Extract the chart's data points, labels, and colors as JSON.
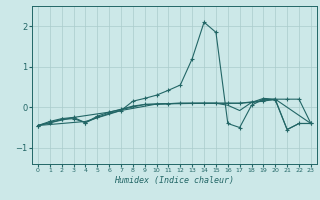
{
  "title": "",
  "xlabel": "Humidex (Indice chaleur)",
  "xlim": [
    -0.5,
    23.5
  ],
  "ylim": [
    -1.4,
    2.5
  ],
  "yticks": [
    -1,
    0,
    1,
    2
  ],
  "xticks": [
    0,
    1,
    2,
    3,
    4,
    5,
    6,
    7,
    8,
    9,
    10,
    11,
    12,
    13,
    14,
    15,
    16,
    17,
    18,
    19,
    20,
    21,
    22,
    23
  ],
  "background_color": "#cce8e8",
  "grid_color": "#aacccc",
  "line_color": "#226666",
  "series1": [
    [
      0,
      -0.45
    ],
    [
      1,
      -0.35
    ],
    [
      2,
      -0.28
    ],
    [
      3,
      -0.25
    ],
    [
      4,
      -0.38
    ],
    [
      5,
      -0.25
    ],
    [
      6,
      -0.15
    ],
    [
      7,
      -0.08
    ],
    [
      8,
      0.15
    ],
    [
      9,
      0.22
    ],
    [
      10,
      0.3
    ],
    [
      11,
      0.42
    ],
    [
      12,
      0.55
    ],
    [
      13,
      1.2
    ],
    [
      14,
      2.1
    ],
    [
      15,
      1.85
    ],
    [
      16,
      -0.4
    ],
    [
      17,
      -0.5
    ],
    [
      18,
      0.05
    ],
    [
      19,
      0.2
    ],
    [
      20,
      0.18
    ],
    [
      21,
      -0.55
    ],
    [
      22,
      -0.4
    ],
    [
      23,
      -0.4
    ]
  ],
  "series2": [
    [
      0,
      -0.45
    ],
    [
      1,
      -0.38
    ],
    [
      2,
      -0.3
    ],
    [
      3,
      -0.28
    ],
    [
      4,
      -0.38
    ],
    [
      5,
      -0.22
    ],
    [
      6,
      -0.12
    ],
    [
      7,
      -0.05
    ],
    [
      8,
      0.03
    ],
    [
      9,
      0.07
    ],
    [
      10,
      0.08
    ],
    [
      11,
      0.09
    ],
    [
      12,
      0.1
    ],
    [
      13,
      0.1
    ],
    [
      14,
      0.1
    ],
    [
      15,
      0.1
    ],
    [
      16,
      0.1
    ],
    [
      17,
      0.1
    ],
    [
      18,
      0.12
    ],
    [
      19,
      0.15
    ],
    [
      20,
      0.2
    ],
    [
      21,
      0.2
    ],
    [
      22,
      0.2
    ],
    [
      23,
      -0.4
    ]
  ],
  "series3": [
    [
      0,
      -0.45
    ],
    [
      4,
      -0.35
    ],
    [
      7,
      -0.08
    ],
    [
      10,
      0.08
    ],
    [
      14,
      0.1
    ],
    [
      17,
      0.1
    ],
    [
      20,
      0.2
    ],
    [
      23,
      -0.4
    ]
  ],
  "series4": [
    [
      0,
      -0.45
    ],
    [
      3,
      -0.25
    ],
    [
      6,
      -0.12
    ],
    [
      9,
      0.07
    ],
    [
      12,
      0.1
    ],
    [
      15,
      0.1
    ],
    [
      16,
      0.05
    ],
    [
      17,
      -0.08
    ],
    [
      18,
      0.12
    ],
    [
      19,
      0.22
    ],
    [
      20,
      0.2
    ],
    [
      21,
      -0.55
    ],
    [
      22,
      -0.4
    ],
    [
      23,
      -0.4
    ]
  ],
  "marker_series": [
    0,
    2,
    4,
    6,
    8,
    10,
    12,
    13,
    14,
    15,
    16,
    17,
    18,
    19,
    20,
    21,
    22,
    23
  ]
}
